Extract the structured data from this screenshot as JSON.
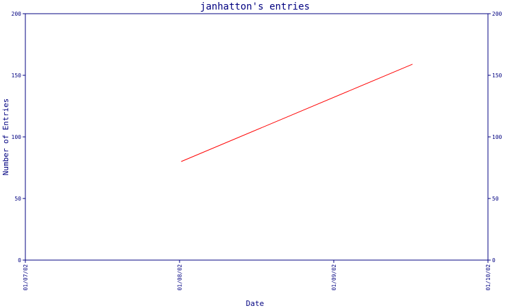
{
  "chart_data": {
    "type": "line",
    "title": "janhatton's entries",
    "xlabel": "Date",
    "ylabel": "Number of Entries",
    "x_ticks": [
      "01/07/02",
      "01/08/02",
      "01/09/02",
      "01/10/02"
    ],
    "y_ticks": [
      "0",
      "50",
      "100",
      "150",
      "200"
    ],
    "ylim": [
      0,
      200
    ],
    "xlim": [
      "2002-07-01",
      "2002-10-01"
    ],
    "series": [
      {
        "x": [
          "2002-08-01",
          "2002-09-16"
        ],
        "values": [
          80,
          159
        ],
        "color": "#ff0000"
      }
    ],
    "axis_color": "#000080",
    "grid": false,
    "legend": "none"
  }
}
